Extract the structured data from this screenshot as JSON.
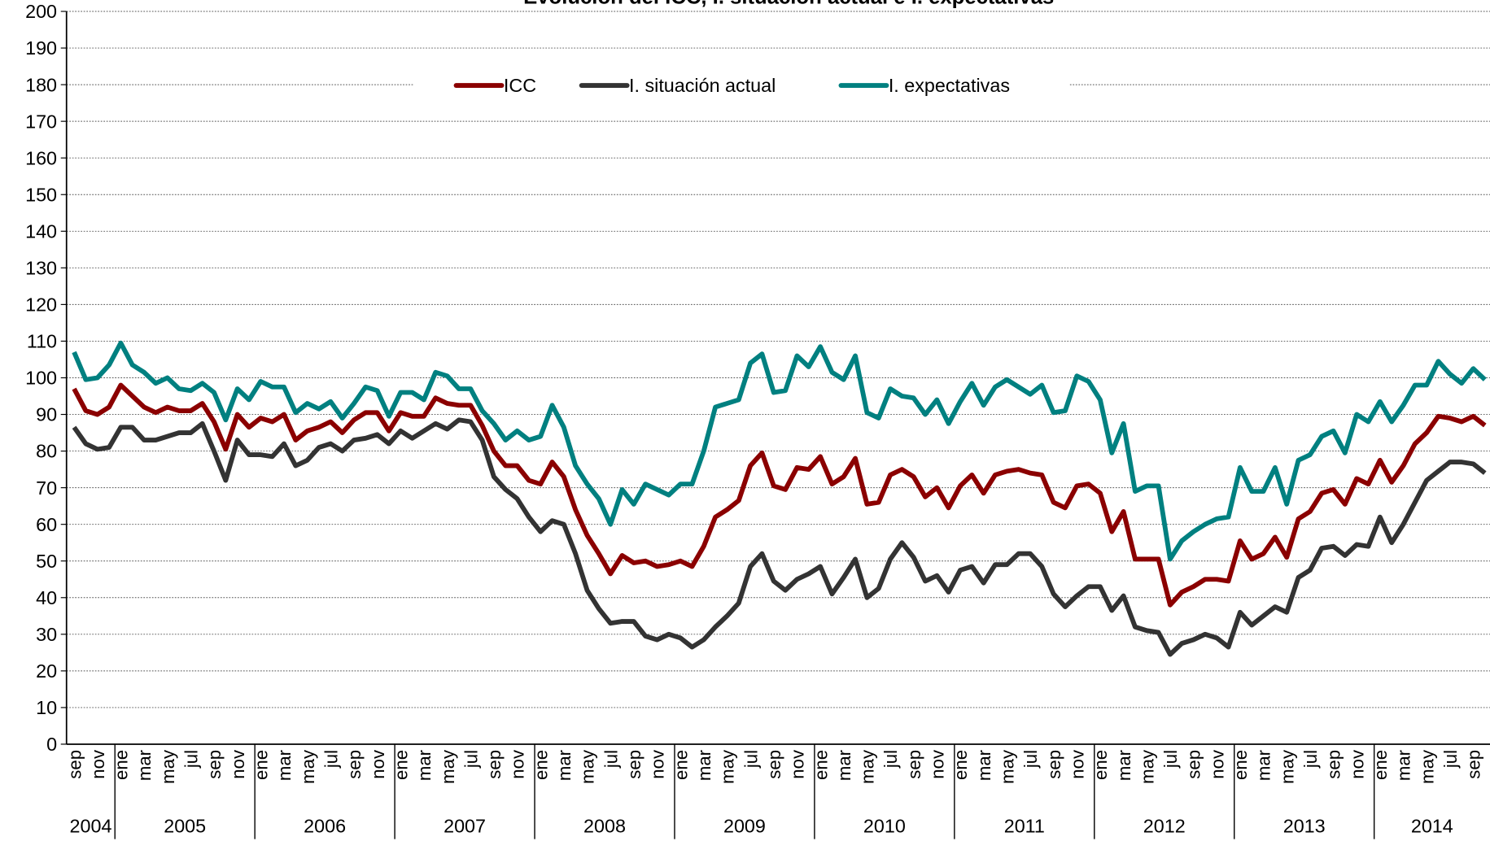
{
  "chart_data": {
    "type": "line",
    "title": "Evolución del ICC, I. situación actual e I. expectativas",
    "categories": [
      "sep",
      null,
      "nov",
      null,
      "ene",
      null,
      "mar",
      null,
      "may",
      null,
      "jul",
      null,
      "sep",
      null,
      "nov",
      null,
      "ene",
      null,
      "mar",
      null,
      "may",
      null,
      "jul",
      null,
      "sep",
      null,
      "nov",
      null,
      "ene",
      null,
      "mar",
      null,
      "may",
      null,
      "jul",
      null,
      "sep",
      null,
      "nov",
      null,
      "ene",
      null,
      "mar",
      null,
      "may",
      null,
      "jul",
      null,
      "sep",
      null,
      "nov",
      null,
      "ene",
      null,
      "mar",
      null,
      "may",
      null,
      "jul",
      null,
      "sep",
      null,
      "nov",
      null,
      "ene",
      null,
      "mar",
      null,
      "may",
      null,
      "jul",
      null,
      "sep",
      null,
      "nov",
      null,
      "ene",
      null,
      "mar",
      null,
      "may",
      null,
      "jul",
      null,
      "sep",
      null,
      "nov",
      null,
      "ene",
      null,
      "mar",
      null,
      "may",
      null,
      "jul",
      null,
      "sep",
      null,
      "nov",
      null,
      "ene",
      null,
      "mar",
      null,
      "may",
      null,
      "jul",
      null,
      "sep",
      null,
      "nov",
      null,
      "ene",
      null,
      "mar",
      null,
      "may",
      null,
      "jul",
      null,
      "sep",
      null
    ],
    "years": [
      "2004",
      "2005",
      "2006",
      "2007",
      "2008",
      "2009",
      "2010",
      "2011",
      "2012",
      "2013",
      "2014"
    ],
    "series": [
      {
        "name": "ICC",
        "color": "#8b0000",
        "values": [
          97,
          91,
          90,
          92,
          98,
          95,
          92,
          90.5,
          92,
          91,
          91,
          93,
          88,
          80.5,
          90,
          86.5,
          89,
          88,
          90,
          83,
          85.5,
          86.5,
          88,
          85,
          88.5,
          90.5,
          90.5,
          85.5,
          90.5,
          89.5,
          89.5,
          94.5,
          93,
          92.5,
          92.5,
          87,
          80,
          76,
          76,
          72,
          71,
          77,
          73,
          64,
          57,
          52,
          46.5,
          51.5,
          49.5,
          50,
          48.5,
          49,
          50,
          48.5,
          54,
          62,
          64,
          66.5,
          76,
          79.5,
          70.5,
          69.5,
          75.5,
          75,
          78.5,
          71,
          73,
          78,
          65.5,
          66,
          73.5,
          75,
          73,
          67.5,
          70,
          64.5,
          70.5,
          73.5,
          68.5,
          73.5,
          74.5,
          75,
          74,
          73.5,
          66,
          64.5,
          70.5,
          71,
          68.5,
          58,
          63.5,
          50.5,
          50.5,
          50.5,
          38,
          41.5,
          43,
          45,
          45,
          44.5,
          55.5,
          50.5,
          52,
          56.5,
          51,
          61.5,
          63.5,
          68.5,
          69.5,
          65.5,
          72.5,
          71,
          77.5,
          71.5,
          76,
          82,
          85,
          89.5,
          89,
          88,
          89.5,
          87
        ]
      },
      {
        "name": "I. situación actual",
        "color": "#333333",
        "values": [
          86.5,
          82,
          80.5,
          81,
          86.5,
          86.5,
          83,
          83,
          84,
          85,
          85,
          87.5,
          80,
          72,
          83,
          79,
          79,
          78.5,
          82,
          76,
          77.5,
          81,
          82,
          80,
          83,
          83.5,
          84.5,
          82,
          85.5,
          83.5,
          85.5,
          87.5,
          86,
          88.5,
          88,
          83,
          73,
          69.5,
          67,
          62,
          58,
          61,
          60,
          52,
          42,
          37,
          33,
          33.5,
          33.5,
          29.5,
          28.5,
          30,
          29,
          26.5,
          28.5,
          32,
          35,
          38.5,
          48.5,
          52,
          44.5,
          42,
          45,
          46.5,
          48.5,
          41,
          45.5,
          50.5,
          40,
          42.5,
          50.5,
          55,
          51,
          44.5,
          46,
          41.5,
          47.5,
          48.5,
          44,
          49,
          49,
          52,
          52,
          48.5,
          41,
          37.5,
          40.5,
          43,
          43,
          36.5,
          40.5,
          32,
          31,
          30.5,
          24.5,
          27.5,
          28.5,
          30,
          29,
          26.5,
          36,
          32.5,
          35,
          37.5,
          36,
          45.5,
          47.5,
          53.5,
          54,
          51.5,
          54.5,
          54,
          62,
          55,
          60,
          66,
          72,
          74.5,
          77,
          77,
          76.5,
          74
        ]
      },
      {
        "name": "I. expectativas",
        "color": "#008080",
        "values": [
          107,
          99.5,
          100,
          103.5,
          109.5,
          103.5,
          101.5,
          98.5,
          100,
          97,
          96.5,
          98.5,
          96,
          88.5,
          97,
          94,
          99,
          97.5,
          97.5,
          90.5,
          93,
          91.5,
          93.5,
          89,
          93,
          97.5,
          96.5,
          89.5,
          96,
          96,
          94,
          101.5,
          100.5,
          97,
          97,
          91,
          87.5,
          83,
          85.5,
          83,
          84,
          92.5,
          86.5,
          76,
          71,
          67,
          60,
          69.5,
          65.5,
          71,
          69.5,
          68,
          71,
          71,
          80,
          92,
          93,
          94,
          104,
          106.5,
          96,
          96.5,
          106,
          103,
          108.5,
          101.5,
          99.5,
          106,
          90.5,
          89,
          97,
          95,
          94.5,
          90,
          94,
          87.5,
          93.5,
          98.5,
          92.5,
          97.5,
          99.5,
          97.5,
          95.5,
          98,
          90.5,
          91,
          100.5,
          99,
          94,
          79.5,
          87.5,
          69,
          70.5,
          70.5,
          50.5,
          55.5,
          58,
          60,
          61.5,
          62,
          75.5,
          69,
          69,
          75.5,
          65.5,
          77.5,
          79,
          84,
          85.5,
          79.5,
          90,
          88,
          93.5,
          88,
          92.5,
          98,
          98,
          104.5,
          101,
          98.5,
          102.5,
          99.5
        ]
      }
    ],
    "ylim": [
      0,
      200
    ],
    "yticks": [
      0,
      10,
      20,
      30,
      40,
      50,
      60,
      70,
      80,
      90,
      100,
      110,
      120,
      130,
      140,
      150,
      160,
      170,
      180,
      190,
      200
    ],
    "grid": true,
    "legend": "top"
  }
}
